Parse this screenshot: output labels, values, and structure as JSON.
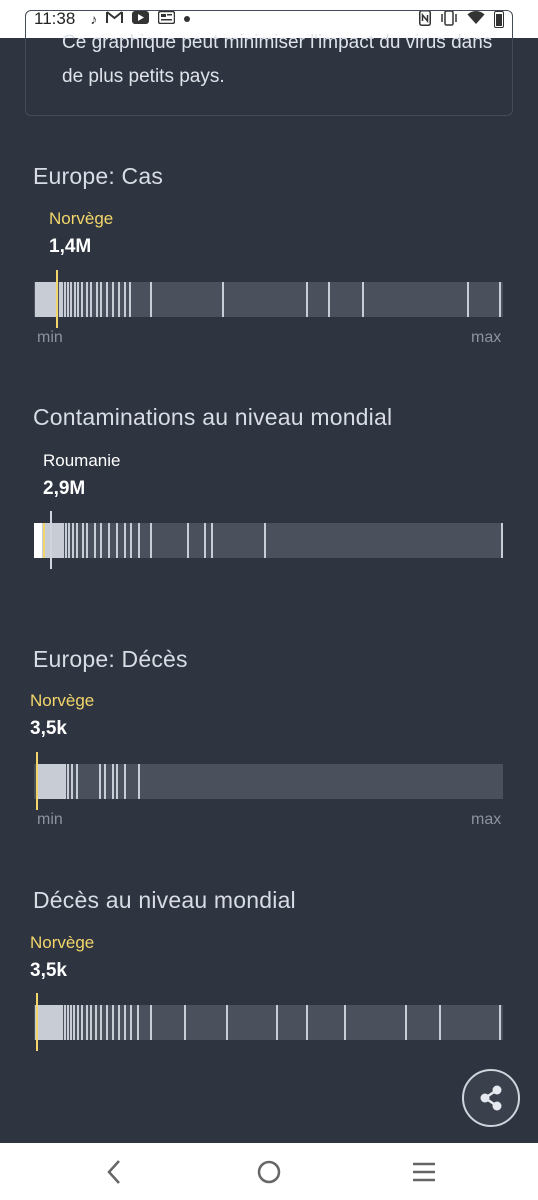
{
  "status_bar": {
    "time": "11:38",
    "left_icons": [
      "tiktok-icon",
      "gmail-icon",
      "youtube-icon",
      "news-icon",
      "dot-icon"
    ],
    "right_icons": [
      "nfc-icon",
      "vibrate-icon",
      "wifi-icon",
      "battery-icon"
    ]
  },
  "note": {
    "text": "Ce graphique peut minimiser l'impact du virus dans de plus petits pays."
  },
  "sections": [
    {
      "title": "Europe: Cas",
      "country": "Norvège",
      "country_highlight": true,
      "value": "1,4M",
      "show_minmax": true,
      "min_label": "min",
      "max_label": "max"
    },
    {
      "title": "Contaminations au niveau mondial",
      "country": "Roumanie",
      "country_highlight": false,
      "value": "2,9M",
      "show_minmax": false
    },
    {
      "title": "Europe: Décès",
      "country": "Norvège",
      "country_highlight": true,
      "value": "3,5k",
      "show_minmax": true,
      "min_label": "min",
      "max_label": "max"
    },
    {
      "title": "Décès au niveau mondial",
      "country": "Norvège",
      "country_highlight": true,
      "value": "3,5k",
      "show_minmax": false
    }
  ],
  "share_button": {
    "icon": "share-icon"
  },
  "nav_bar": {
    "icons": [
      "back-icon",
      "home-icon",
      "recents-icon"
    ]
  },
  "colors": {
    "background": "#2e3440",
    "highlight": "#f2d66b",
    "strip": "#4a505c",
    "tick": "#c8ccd4"
  }
}
